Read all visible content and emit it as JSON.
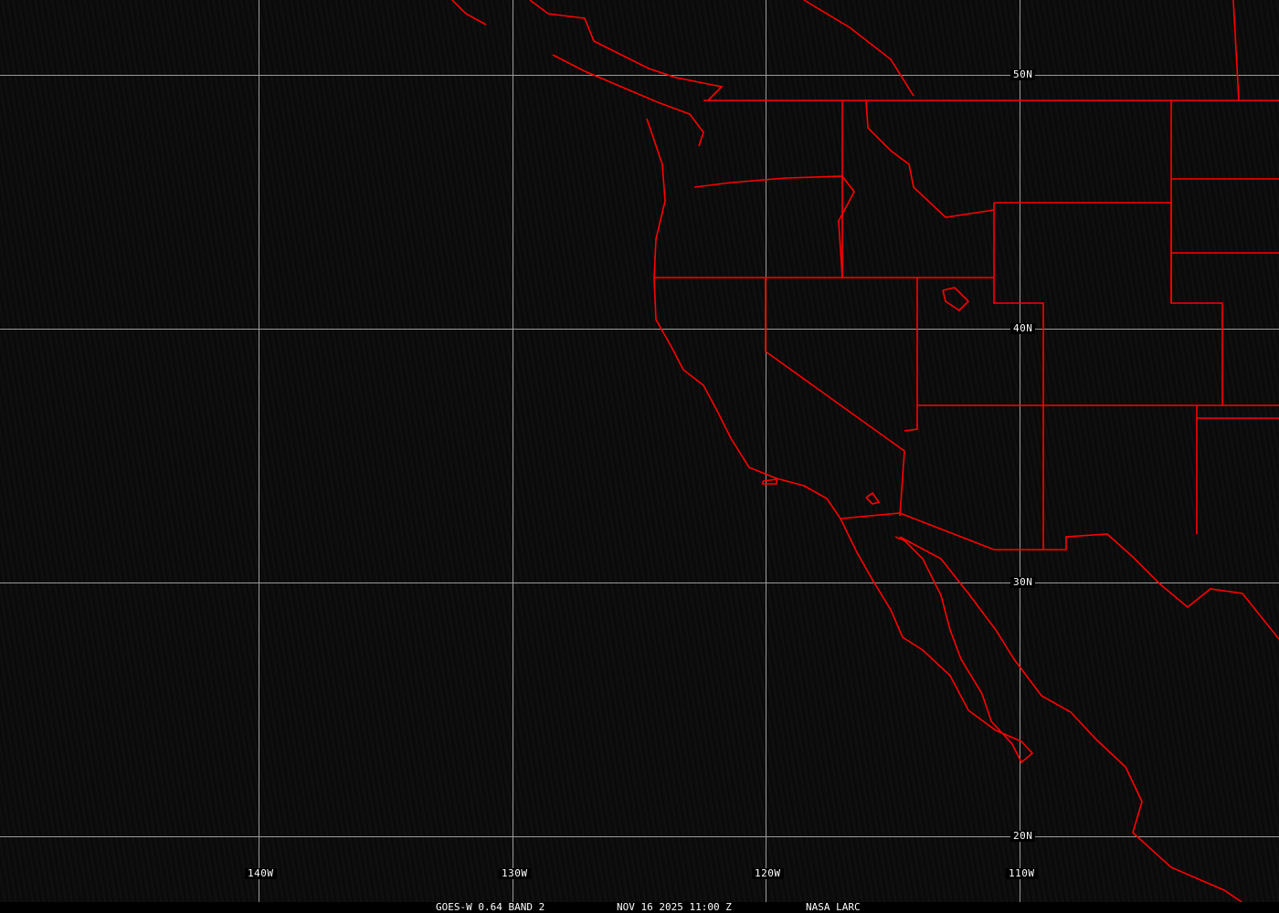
{
  "map": {
    "projection": "equirectangular",
    "background_color": "#0c0c0c",
    "grid_color": "#9a9a9a",
    "boundary_color": "#ff0000",
    "longitude_labels": [
      "140W",
      "130W",
      "120W",
      "110W"
    ],
    "latitude_labels": [
      "50N",
      "40N",
      "30N",
      "20N"
    ]
  },
  "caption": {
    "product": "GOES-W 0.64 BAND 2",
    "datetime": "NOV 16 2025 11:00 Z",
    "source": "NASA LARC"
  }
}
